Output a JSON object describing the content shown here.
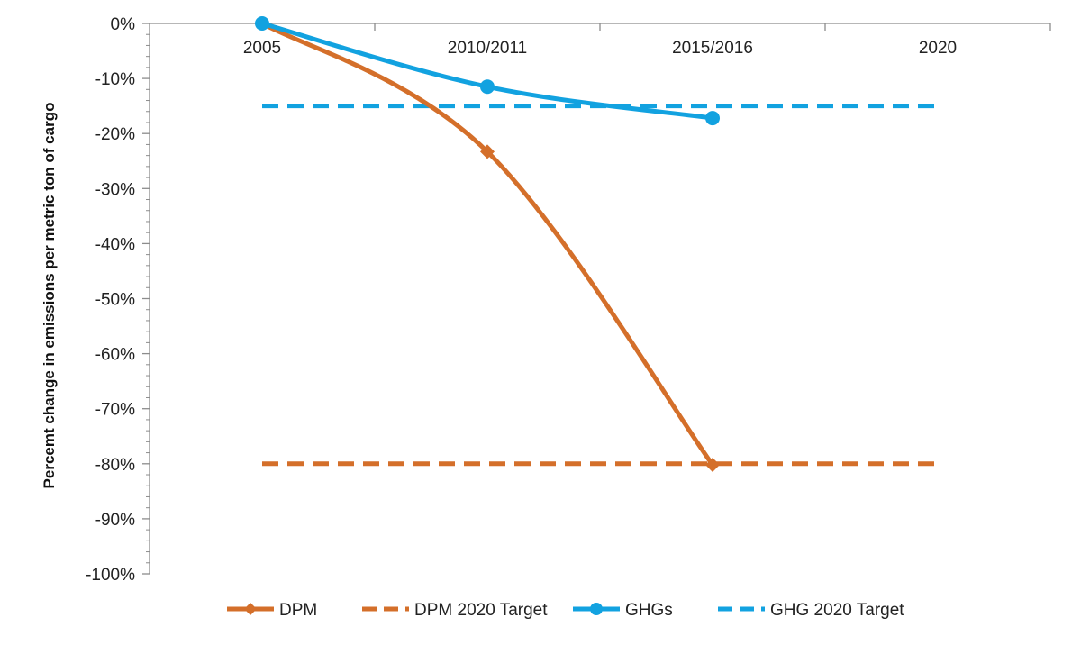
{
  "chart_data": {
    "type": "line",
    "title": "",
    "xlabel": "",
    "ylabel": "Percemt change in emissions per metric ton of cargo",
    "categories": [
      "2005",
      "2010/2011",
      "2015/2016",
      "2020"
    ],
    "ylim": [
      -100,
      0
    ],
    "yticks": [
      0,
      -10,
      -20,
      -30,
      -40,
      -50,
      -60,
      -70,
      -80,
      -90,
      -100
    ],
    "ytick_labels": [
      "0%",
      "-10%",
      "-20%",
      "-30%",
      "-40%",
      "-50%",
      "-60%",
      "-70%",
      "-80%",
      "-90%",
      "-100%"
    ],
    "grid": false,
    "legend_position": "bottom",
    "series": [
      {
        "name": "DPM",
        "values": [
          0,
          -23.3,
          -80.2,
          null
        ],
        "color": "#d46f2a",
        "dash": false,
        "marker": "diamond"
      },
      {
        "name": "DPM 2020 Target",
        "values": [
          -80,
          -80,
          -80,
          -80
        ],
        "color": "#d46f2a",
        "dash": true,
        "marker": "none"
      },
      {
        "name": "GHGs",
        "values": [
          0,
          -11.5,
          -17.2,
          null
        ],
        "color": "#12a2e0",
        "dash": false,
        "marker": "circle"
      },
      {
        "name": "GHG 2020 Target",
        "values": [
          -15,
          -15,
          -15,
          -15
        ],
        "color": "#12a2e0",
        "dash": true,
        "marker": "none"
      }
    ]
  }
}
